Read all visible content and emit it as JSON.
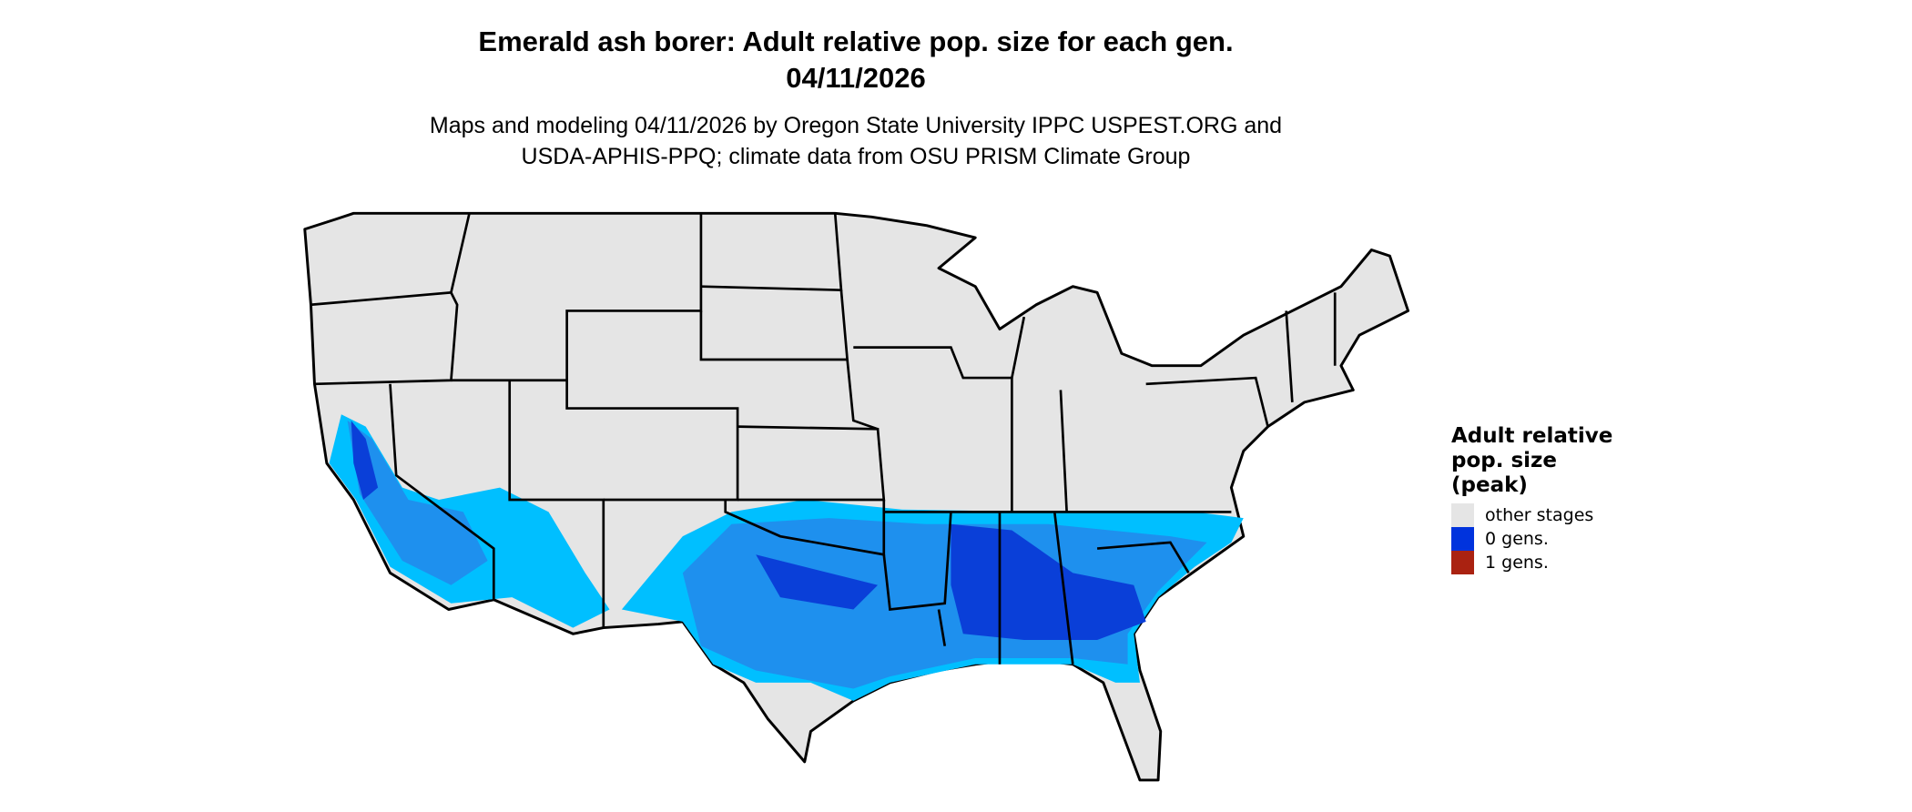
{
  "title": {
    "line1": "Emerald ash borer: Adult relative pop. size for each gen.",
    "line2": "04/11/2026"
  },
  "subtitle": {
    "line1": "Maps and modeling 04/11/2026 by Oregon State University IPPC USPEST.ORG and",
    "line2": "USDA-APHIS-PPQ; climate data from OSU PRISM Climate Group"
  },
  "map": {
    "region": "Contiguous United States",
    "base_color": "#e5e5e5",
    "border_color": "#000000",
    "shading_colors": [
      "#00bfff",
      "#1e90ee",
      "#0a3fd8"
    ]
  },
  "legend": {
    "title": "Adult relative pop. size (peak)",
    "title_lines": [
      "Adult relative",
      "pop. size",
      "(peak)"
    ],
    "entries": [
      {
        "label": "other stages",
        "color": "#e5e5e5"
      },
      {
        "label": "0 gens.",
        "color": "#0033dd"
      },
      {
        "label": "1 gens.",
        "color": "#aa2211"
      }
    ]
  }
}
